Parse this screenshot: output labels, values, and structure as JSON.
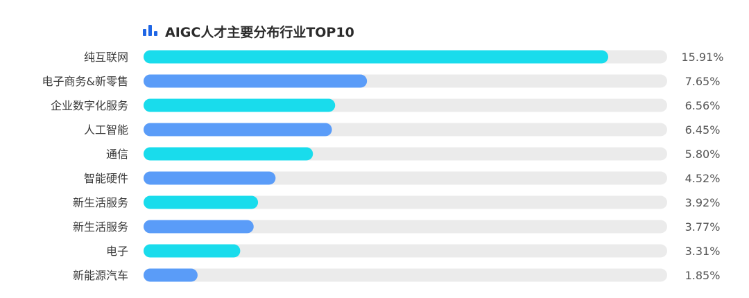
{
  "title": "AIGC人才主要分布行业TOP10",
  "icon": "bar-chart-icon",
  "colors": {
    "title_icon": "#1f66e5",
    "track": "#ebebeb",
    "series_a": "#19dcec",
    "series_b": "#5a9cf8"
  },
  "chart_data": {
    "type": "bar",
    "orientation": "horizontal",
    "title": "AIGC人才主要分布行业TOP10",
    "categories": [
      "纯互联网",
      "电子商务&新零售",
      "企业数字化服务",
      "人工智能",
      "通信",
      "智能硬件",
      "新生活服务",
      "新生活服务",
      "电子",
      "新能源汽车"
    ],
    "values": [
      15.91,
      7.65,
      6.56,
      6.45,
      5.8,
      4.52,
      3.92,
      3.77,
      3.31,
      1.85
    ],
    "value_labels": [
      "15.91%",
      "7.65%",
      "6.56%",
      "6.45%",
      "5.80%",
      "4.52%",
      "3.92%",
      "3.77%",
      "3.31%",
      "1.85%"
    ],
    "unit": "%",
    "xlim": [
      0,
      18
    ],
    "grid": false,
    "legend": "none",
    "bar_colors_alternating": [
      "#19dcec",
      "#5a9cf8"
    ]
  }
}
